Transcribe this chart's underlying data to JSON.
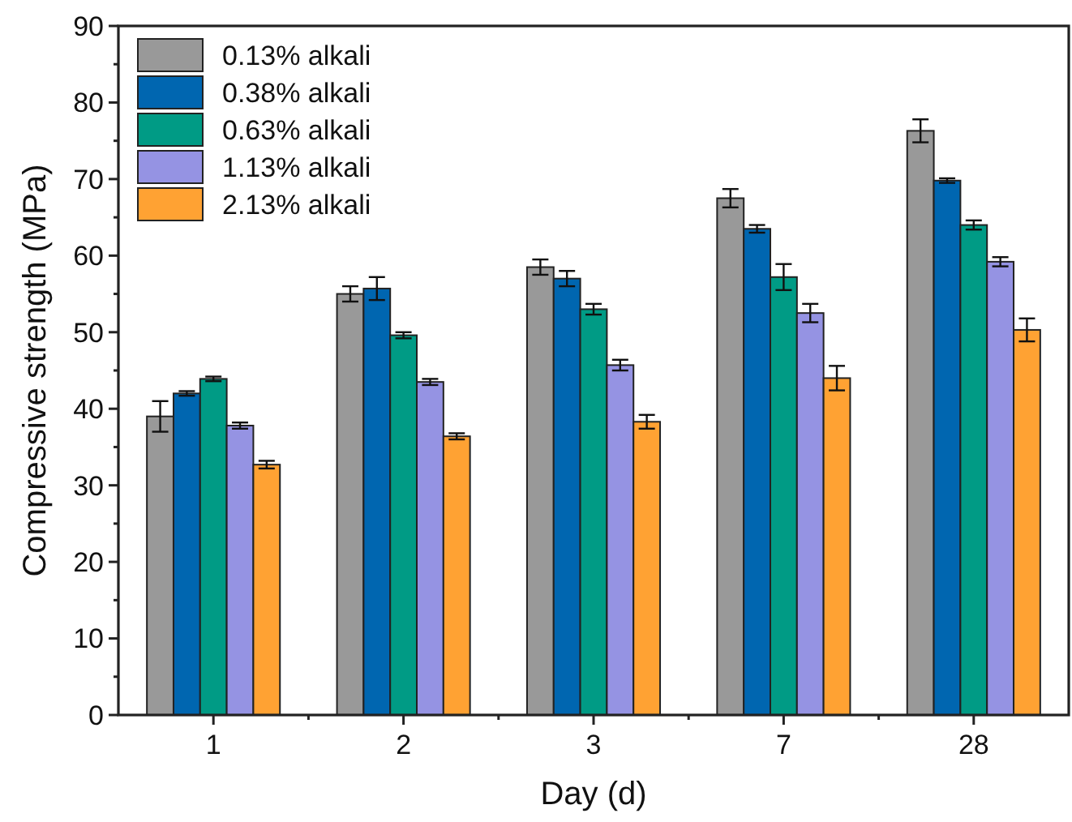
{
  "chart_data": {
    "type": "bar",
    "xlabel": "Day (d)",
    "ylabel": "Compressive strength (MPa)",
    "categories": [
      "1",
      "2",
      "3",
      "7",
      "28"
    ],
    "ylim": [
      0,
      90
    ],
    "yticks": [
      0,
      10,
      20,
      30,
      40,
      50,
      60,
      70,
      80,
      90
    ],
    "legend": "top left",
    "series": [
      {
        "name": "0.13% alkali",
        "color": "#999999",
        "values": [
          39,
          55,
          58.5,
          67.5,
          76.3
        ],
        "errors": [
          2,
          1,
          1,
          1.2,
          1.5
        ]
      },
      {
        "name": "0.38% alkali",
        "color": "#0066b0",
        "values": [
          42,
          55.7,
          57,
          63.5,
          69.8
        ],
        "errors": [
          0.3,
          1.5,
          1,
          0.5,
          0.3
        ]
      },
      {
        "name": "0.63% alkali",
        "color": "#009b85",
        "values": [
          43.9,
          49.6,
          53,
          57.2,
          64
        ],
        "errors": [
          0.3,
          0.4,
          0.7,
          1.7,
          0.6
        ]
      },
      {
        "name": "1.13% alkali",
        "color": "#9593e3",
        "values": [
          37.8,
          43.5,
          45.7,
          52.5,
          59.2
        ],
        "errors": [
          0.4,
          0.4,
          0.7,
          1.2,
          0.6
        ]
      },
      {
        "name": "2.13% alkali",
        "color": "#ffa233",
        "values": [
          32.7,
          36.4,
          38.3,
          44,
          50.3
        ],
        "errors": [
          0.5,
          0.4,
          0.9,
          1.6,
          1.5
        ]
      }
    ]
  }
}
